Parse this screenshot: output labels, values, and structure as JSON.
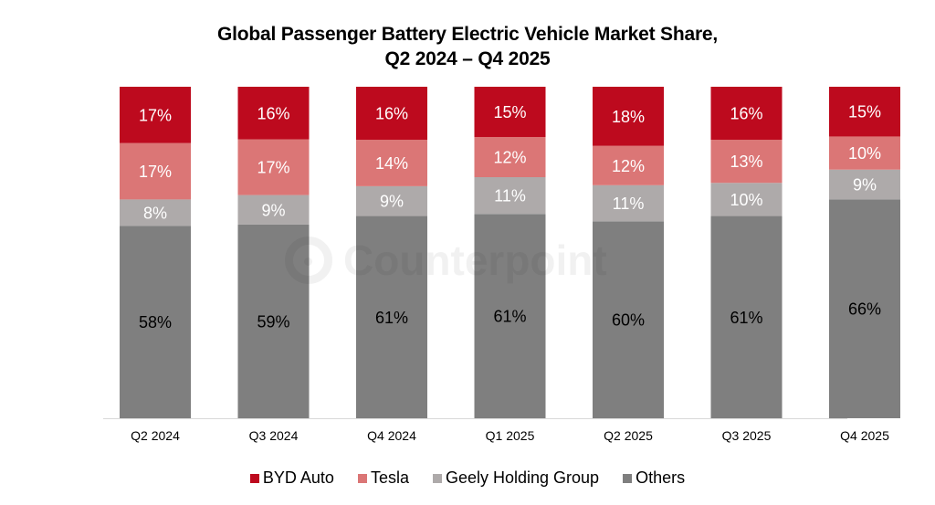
{
  "chart_data": {
    "type": "bar",
    "stacked": true,
    "title": "Global Passenger Battery Electric Vehicle Market Share,",
    "subtitle": "Q2 2024 – Q4 2025",
    "xlabel": "",
    "ylabel": "",
    "ylim": [
      0,
      100
    ],
    "grid": false,
    "legend_position": "bottom",
    "categories": [
      "Q2 2024",
      "Q3 2024",
      "Q4 2024",
      "Q1 2025",
      "Q2 2025",
      "Q3 2025",
      "Q4 2025"
    ],
    "series": [
      {
        "name": "Others",
        "color": "#7f7f7f",
        "label_color": "#000000",
        "values": [
          58,
          59,
          61,
          61,
          60,
          61,
          66
        ]
      },
      {
        "name": "Geely Holding Group",
        "color": "#aeaaaa",
        "label_color": "#ffffff",
        "values": [
          8,
          9,
          9,
          11,
          11,
          10,
          9
        ]
      },
      {
        "name": "Tesla",
        "color": "#db7676",
        "label_color": "#ffffff",
        "values": [
          17,
          17,
          14,
          12,
          12,
          13,
          10
        ]
      },
      {
        "name": "BYD Auto",
        "color": "#bd0a1e",
        "label_color": "#ffffff",
        "values": [
          17,
          16,
          16,
          15,
          18,
          16,
          15
        ]
      }
    ],
    "value_suffix": "%",
    "legend_order": [
      "BYD Auto",
      "Tesla",
      "Geely Holding Group",
      "Others"
    ]
  },
  "watermark": {
    "text": "Counterpoint",
    "icon": "counterpoint-logo-icon"
  }
}
